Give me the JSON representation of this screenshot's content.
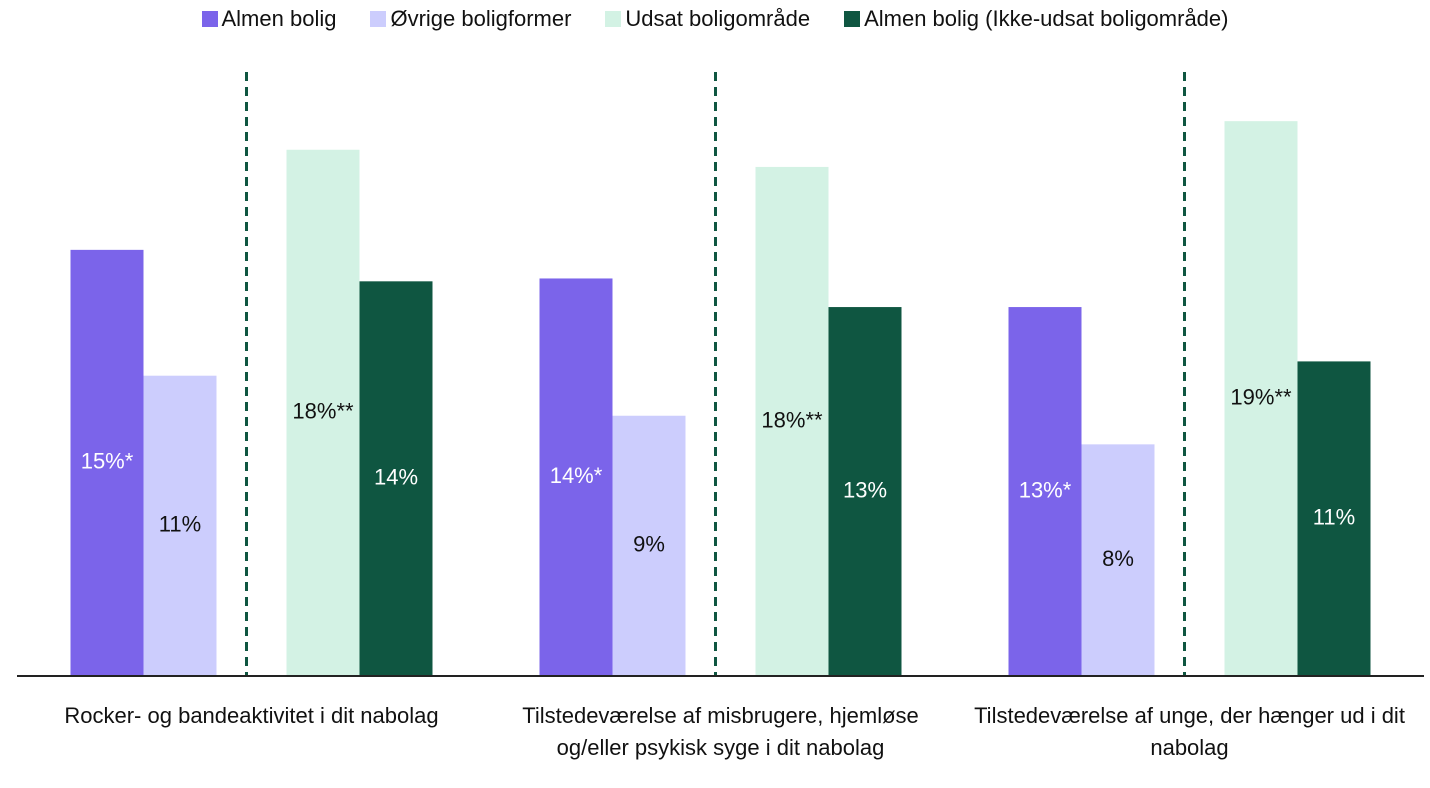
{
  "chart_data": {
    "type": "bar",
    "categories": [
      "Rocker- og bandeaktivitet i dit nabolag",
      "Tilstedeværelse af misbrugere, hjemløse og/eller psykisk syge i dit nabolag",
      "Tilstedeværelse af unge, der hænger ud i dit nabolag"
    ],
    "series": [
      {
        "name": "Almen bolig",
        "color": "#7b64ea",
        "values": [
          14.9,
          13.9,
          12.9
        ],
        "value_labels": [
          "15%*",
          "14%*",
          "13%*"
        ]
      },
      {
        "name": "Øvrige boligformer",
        "color": "#cccdfd",
        "values": [
          10.5,
          9.1,
          8.1
        ],
        "value_labels": [
          "11%",
          "9%",
          "8%"
        ]
      },
      {
        "name": "Udsat boligområde",
        "color": "#d3f2e4",
        "values": [
          18.4,
          17.8,
          19.4
        ],
        "value_labels": [
          "18%**",
          "18%**",
          "19%**"
        ]
      },
      {
        "name": "Almen bolig (Ikke-udsat boligområde)",
        "color": "#0f5641",
        "values": [
          13.8,
          12.9,
          11.0
        ],
        "value_labels": [
          "14%",
          "13%",
          "11%"
        ]
      }
    ],
    "ylim": [
      0,
      21.5
    ]
  }
}
